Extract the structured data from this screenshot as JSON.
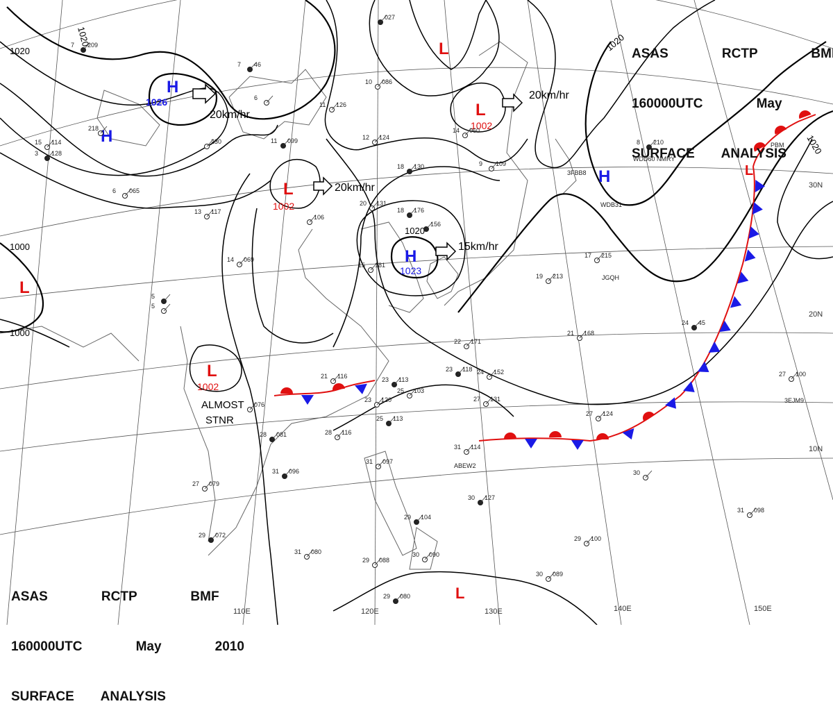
{
  "header": {
    "line1": "ASAS    RCTP    BMF",
    "line2": "160000UTC    May    2010",
    "line3": "SURFACE  ANALYSIS"
  },
  "colors": {
    "high": "#1a1ae6",
    "low": "#e01010",
    "warm_front": "#e01010",
    "cold_front": "#1a1ae6",
    "isobar": "#000000",
    "coast": "#555555",
    "grid": "#444444"
  },
  "pressure_systems": [
    {
      "type": "H",
      "pressure": "1026",
      "motion": "20km/hr"
    },
    {
      "type": "H",
      "pressure": "",
      "motion": ""
    },
    {
      "type": "L",
      "pressure": "1002",
      "motion": "20km/hr"
    },
    {
      "type": "H",
      "pressure": "1023",
      "motion": "15km/hr"
    },
    {
      "type": "L",
      "pressure": "1002",
      "motion": "20km/hr"
    },
    {
      "type": "L",
      "pressure": "",
      "motion": ""
    },
    {
      "type": "H",
      "pressure": "",
      "motion": ""
    },
    {
      "type": "L",
      "pressure": "",
      "motion": ""
    },
    {
      "type": "L",
      "pressure": "1002",
      "motion": ""
    },
    {
      "type": "L",
      "pressure": "",
      "motion": ""
    },
    {
      "type": "L",
      "pressure": "",
      "motion": ""
    }
  ],
  "isobar_labels": [
    "1020",
    "1020",
    "1020",
    "1020",
    "1000",
    "1000",
    "1020"
  ],
  "annotations": {
    "almost_stnr_1": "ALMOST",
    "almost_stnr_2": "STNR"
  },
  "longitude_labels": [
    "110E",
    "120E",
    "130E",
    "140E",
    "150E"
  ],
  "latitude_labels": [
    "30N",
    "20N",
    "10N"
  ],
  "station_ids": [
    "WDB31",
    "WDD60 NMRY",
    "JGQH",
    "ABEW2",
    "3EJM9",
    "3FBB8",
    "PBM"
  ],
  "stations": [
    {
      "temp": "7",
      "pres": "209"
    },
    {
      "temp": "218",
      "pres": ""
    },
    {
      "temp": "15",
      "pres": "114"
    },
    {
      "temp": "3",
      "pres": "128"
    },
    {
      "temp": "6",
      "pres": "065"
    },
    {
      "temp": "13",
      "pres": "117"
    },
    {
      "temp": "5",
      "pres": ""
    },
    {
      "temp": "5",
      "pres": ""
    },
    {
      "temp": "14",
      "pres": "069"
    },
    {
      "temp": "7",
      "pres": "46"
    },
    {
      "temp": "6",
      "pres": ""
    },
    {
      "temp": "11",
      "pres": "126"
    },
    {
      "temp": "11",
      "pres": "099"
    },
    {
      "temp": "10",
      "pres": "086"
    },
    {
      "temp": "12",
      "pres": "124"
    },
    {
      "temp": "18",
      "pres": "130"
    },
    {
      "temp": "9",
      "pres": "109"
    },
    {
      "temp": "14",
      "pres": "060"
    },
    {
      "temp": "18",
      "pres": "176"
    },
    {
      "temp": "20",
      "pres": "131"
    },
    {
      "temp": "15",
      "pres": "181"
    },
    {
      "temp": "8",
      "pres": "210"
    },
    {
      "temp": "17",
      "pres": "215"
    },
    {
      "temp": "19",
      "pres": "213"
    },
    {
      "temp": "24",
      "pres": "45"
    },
    {
      "temp": "21",
      "pres": "168"
    },
    {
      "temp": "22",
      "pres": "171"
    },
    {
      "temp": "23",
      "pres": "118"
    },
    {
      "temp": "24",
      "pres": "152"
    },
    {
      "temp": "21",
      "pres": "116"
    },
    {
      "temp": "23",
      "pres": "113"
    },
    {
      "temp": "25",
      "pres": "103"
    },
    {
      "temp": "23",
      "pres": "120"
    },
    {
      "temp": "25",
      "pres": "113"
    },
    {
      "temp": "27",
      "pres": "131"
    },
    {
      "temp": "27",
      "pres": "124"
    },
    {
      "temp": "28",
      "pres": "081"
    },
    {
      "temp": "28",
      "pres": "116"
    },
    {
      "temp": "31",
      "pres": "114"
    },
    {
      "temp": "31",
      "pres": "096"
    },
    {
      "temp": "27",
      "pres": "079"
    },
    {
      "temp": "31",
      "pres": "097"
    },
    {
      "temp": "30",
      "pres": "127"
    },
    {
      "temp": "30",
      "pres": ""
    },
    {
      "temp": "31",
      "pres": "098"
    },
    {
      "temp": "29",
      "pres": "072"
    },
    {
      "temp": "31",
      "pres": "080"
    },
    {
      "temp": "29",
      "pres": "088"
    },
    {
      "temp": "29",
      "pres": "104"
    },
    {
      "temp": "29",
      "pres": "100"
    },
    {
      "temp": "30",
      "pres": "089"
    },
    {
      "temp": "29",
      "pres": "080"
    },
    {
      "temp": "30",
      "pres": "090"
    },
    {
      "temp": "27",
      "pres": "100"
    },
    {
      "temp": "",
      "pres": "027"
    },
    {
      "temp": "",
      "pres": "230"
    },
    {
      "temp": "",
      "pres": "106"
    },
    {
      "temp": "",
      "pres": "156"
    },
    {
      "temp": "",
      "pres": "076"
    }
  ]
}
